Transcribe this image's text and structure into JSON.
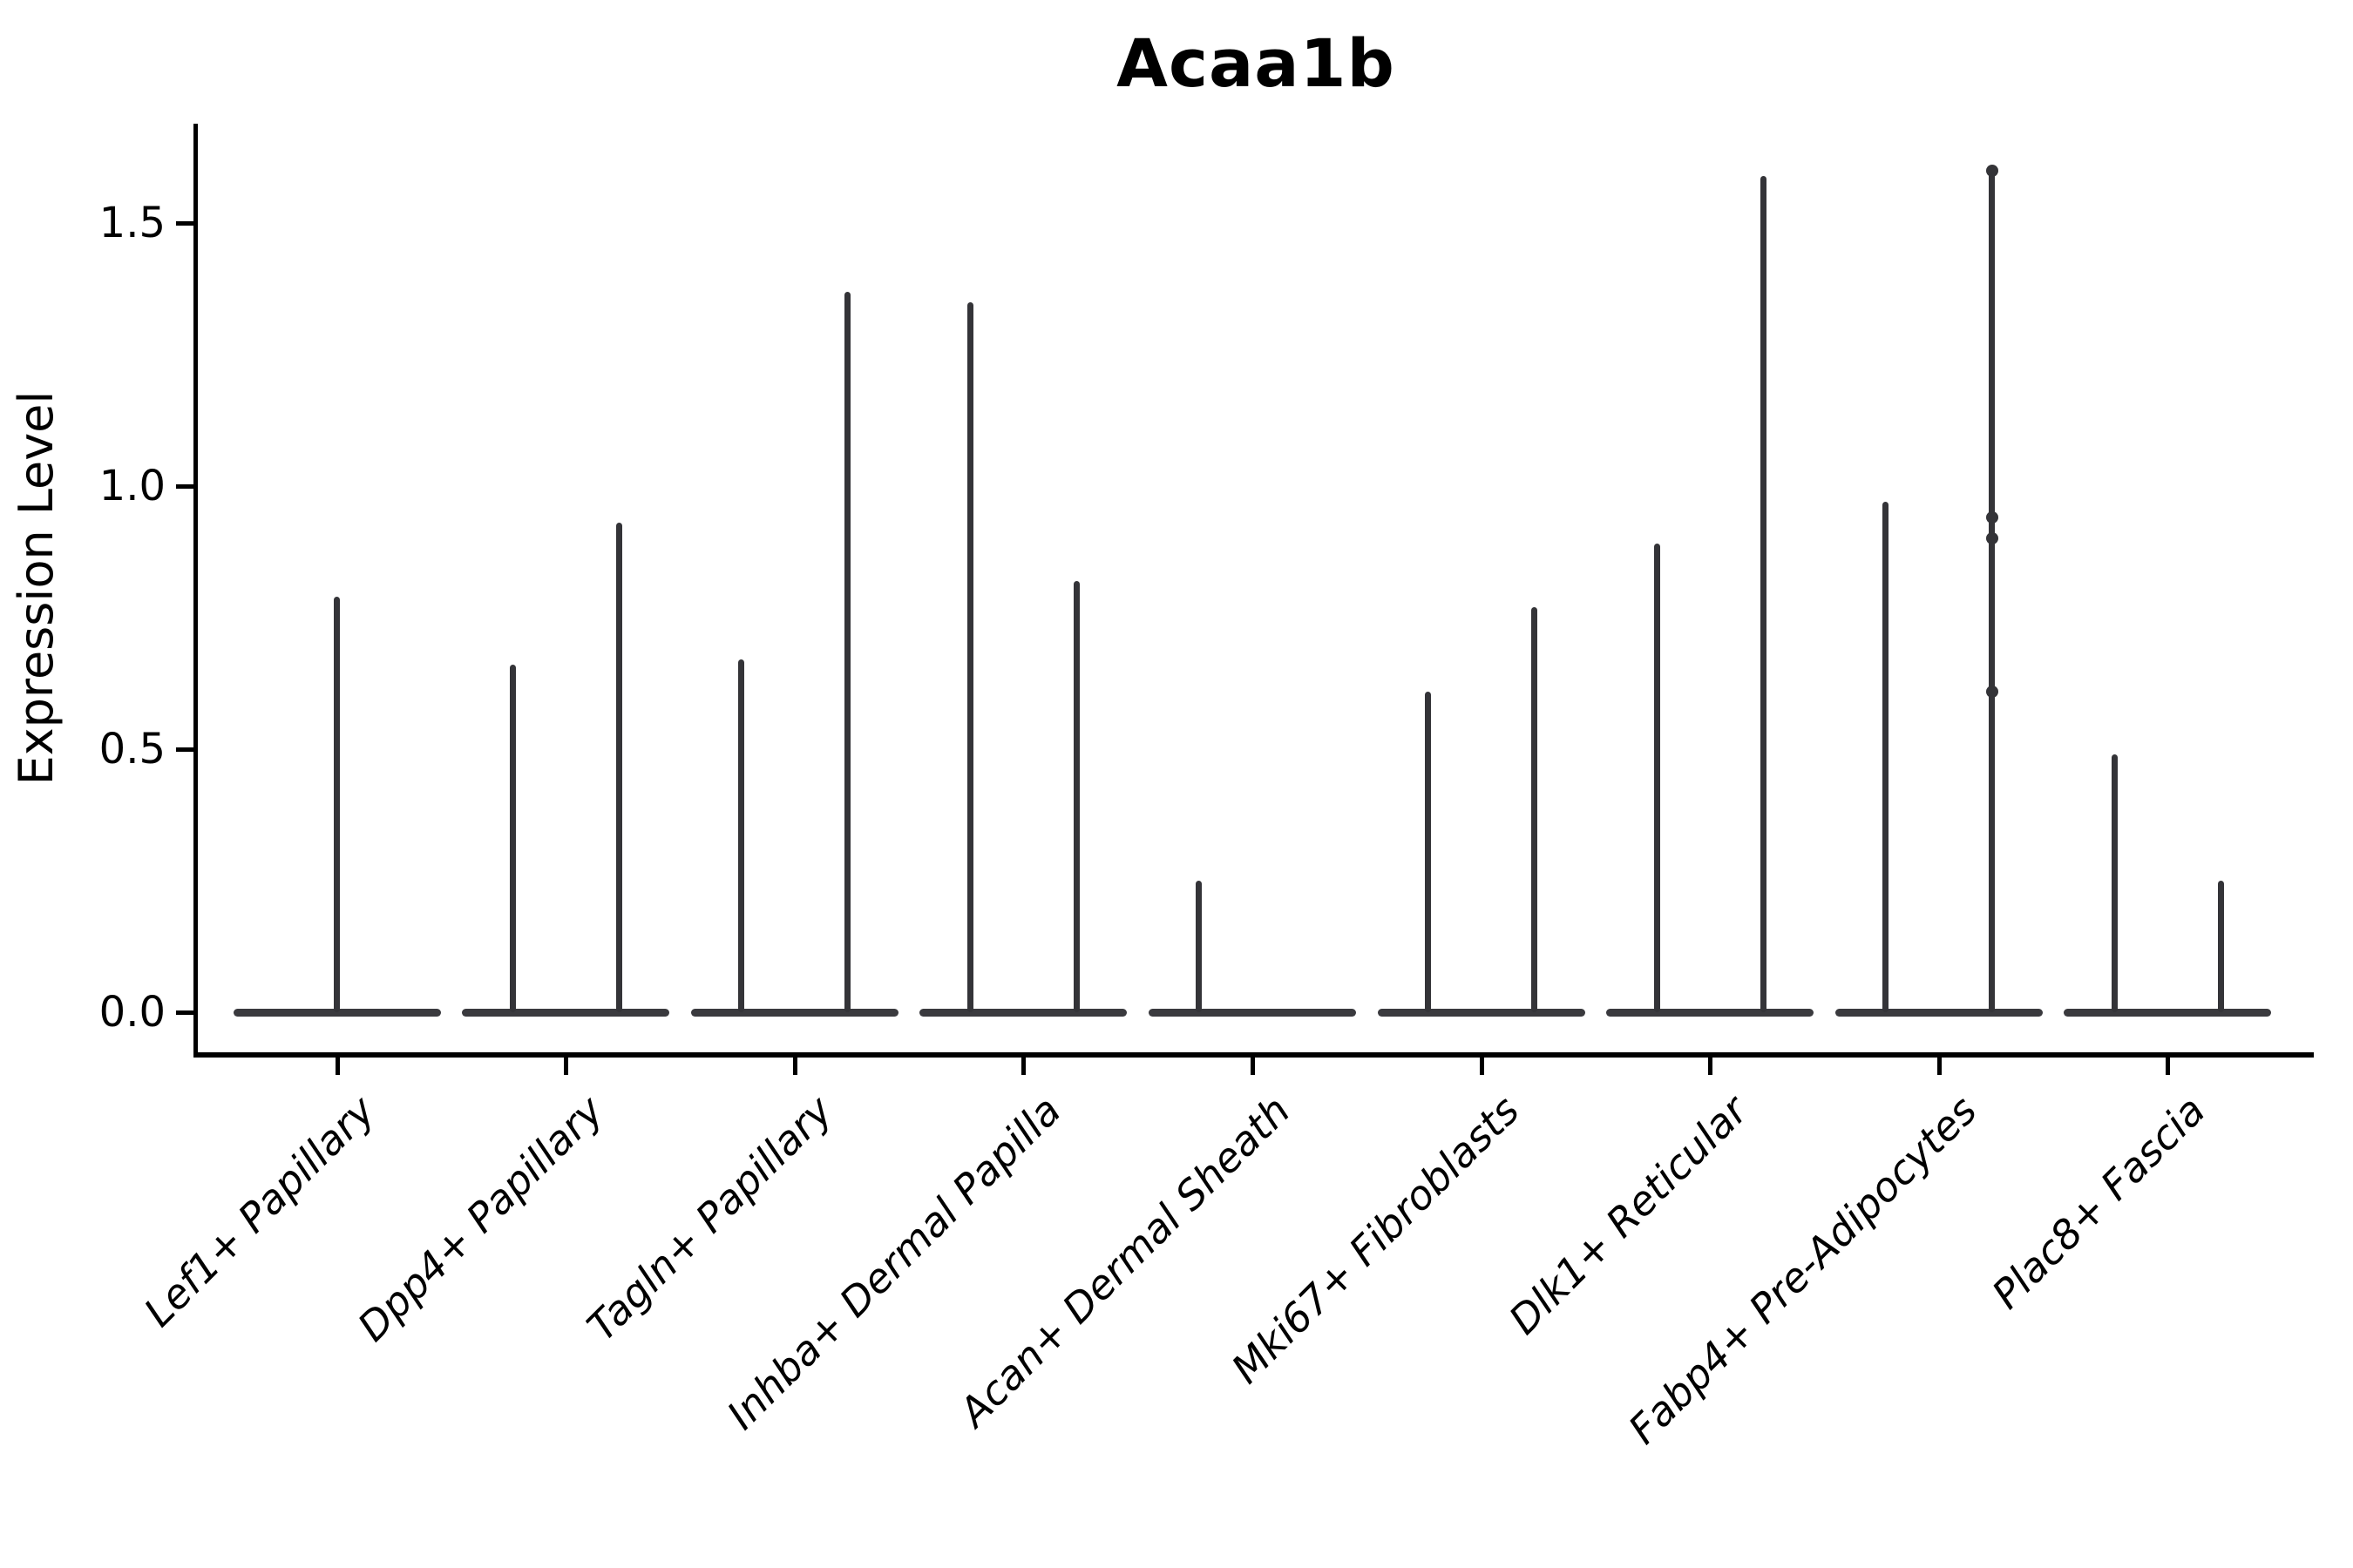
{
  "figure": {
    "title": "Acaa1b",
    "background_color": "#ffffff"
  },
  "chart_data": {
    "type": "violin",
    "title": "Acaa1b",
    "xlabel": "",
    "ylabel": "Expression Level",
    "ylim": [
      -0.08,
      1.69
    ],
    "yticks": [
      0.0,
      0.5,
      1.0,
      1.5
    ],
    "ytick_labels": [
      "0.0",
      "0.5",
      "1.0",
      "1.5"
    ],
    "grid": false,
    "legend": "none",
    "categories": [
      "Lef1+ Papillary",
      "Dpp4+ Papillary",
      "Tagln+ Papillary",
      "Inhba+ Dermal Papilla",
      "Acan+ Dermal Sheath",
      "Mki67+ Fibroblasts",
      "Dlk1+ Reticular",
      "Fabp4+ Pre-Adipocytes",
      "Plac8+ Fascia"
    ],
    "description": "Violin plot of Acaa1b expression; each cluster shows a flat density body at 0 with thin spikes rising to the maximum expressed values. Most clusters contain two side-by-side violins (two groups); spikes sit at each violin center.",
    "violins": [
      {
        "category": "Lef1+ Papillary",
        "groups": [
          {
            "position": "center",
            "max_expression": 0.79
          }
        ]
      },
      {
        "category": "Dpp4+ Papillary",
        "groups": [
          {
            "position": "left",
            "max_expression": 0.66
          },
          {
            "position": "right",
            "max_expression": 0.93
          }
        ]
      },
      {
        "category": "Tagln+ Papillary",
        "groups": [
          {
            "position": "left",
            "max_expression": 0.67
          },
          {
            "position": "right",
            "max_expression": 1.37
          }
        ]
      },
      {
        "category": "Inhba+ Dermal Papilla",
        "groups": [
          {
            "position": "left",
            "max_expression": 1.35
          },
          {
            "position": "right",
            "max_expression": 0.82
          }
        ]
      },
      {
        "category": "Acan+ Dermal Sheath",
        "groups": [
          {
            "position": "left",
            "max_expression": 0.25
          },
          {
            "position": "right",
            "max_expression": 0.0
          }
        ]
      },
      {
        "category": "Mki67+ Fibroblasts",
        "groups": [
          {
            "position": "left",
            "max_expression": 0.61
          },
          {
            "position": "right",
            "max_expression": 0.77
          }
        ]
      },
      {
        "category": "Dlk1+ Reticular",
        "groups": [
          {
            "position": "left",
            "max_expression": 0.89
          },
          {
            "position": "right",
            "max_expression": 1.59
          }
        ]
      },
      {
        "category": "Fabp4+ Pre-Adipocytes",
        "groups": [
          {
            "position": "left",
            "max_expression": 0.97
          },
          {
            "position": "right",
            "max_expression": 1.61
          }
        ]
      },
      {
        "category": "Plac8+ Fascia",
        "groups": [
          {
            "position": "left",
            "max_expression": 0.49
          },
          {
            "position": "right",
            "max_expression": 0.25
          }
        ]
      }
    ],
    "jitter_points": [
      {
        "category": "Fabp4+ Pre-Adipocytes",
        "position": "right",
        "values": [
          1.6,
          0.94,
          0.9,
          0.61
        ]
      }
    ],
    "colors": {
      "violin": "#3a3a3e",
      "axis": "#000000",
      "text": "#000000",
      "background": "#ffffff"
    }
  }
}
